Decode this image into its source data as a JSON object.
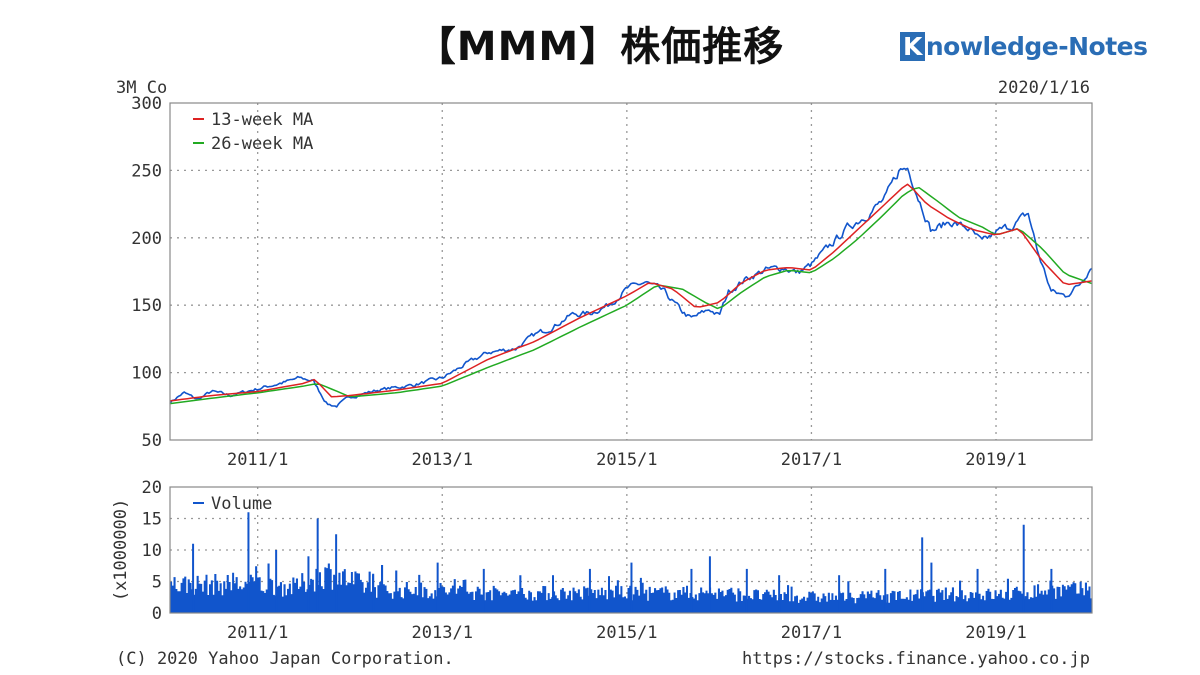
{
  "header": {
    "title": "【MMM】株価推移",
    "brand_initial": "K",
    "brand_rest": "nowledge-Notes"
  },
  "chart_data": [
    {
      "type": "line",
      "title": "3M Co",
      "date": "2020/1/16",
      "ylim": [
        50,
        300
      ],
      "yticks": [
        "300",
        "250",
        "200",
        "150",
        "100",
        "50"
      ],
      "xticks": [
        "2011/1",
        "2013/1",
        "2015/1",
        "2017/1",
        "2019/1"
      ],
      "xrange": [
        2010.05,
        2020.04
      ],
      "grid": true,
      "legend_position": "top-left",
      "series": [
        {
          "name": "13-week MA",
          "color": "#dd2222",
          "x": [
            2010.05,
            2010.5,
            2011.0,
            2011.5,
            2011.62,
            2011.8,
            2012.0,
            2012.5,
            2013.0,
            2013.5,
            2014.0,
            2014.5,
            2015.0,
            2015.25,
            2015.5,
            2015.75,
            2016.0,
            2016.25,
            2016.5,
            2016.75,
            2017.0,
            2017.25,
            2017.5,
            2017.75,
            2018.0,
            2018.05,
            2018.25,
            2018.5,
            2018.75,
            2019.0,
            2019.25,
            2019.5,
            2019.75,
            2020.04
          ],
          "values": [
            79,
            83,
            86,
            92,
            95,
            82,
            83,
            87,
            92,
            110,
            123,
            141,
            157,
            167,
            162,
            148,
            152,
            167,
            176,
            178,
            176,
            190,
            206,
            222,
            238,
            240,
            225,
            214,
            206,
            202,
            207,
            183,
            165,
            168
          ]
        },
        {
          "name": "26-week MA",
          "color": "#22aa22",
          "x": [
            2010.05,
            2010.5,
            2011.0,
            2011.5,
            2011.65,
            2011.9,
            2012.0,
            2012.5,
            2013.0,
            2013.5,
            2014.0,
            2014.5,
            2015.0,
            2015.33,
            2015.6,
            2015.85,
            2016.0,
            2016.25,
            2016.5,
            2016.75,
            2017.0,
            2017.25,
            2017.5,
            2017.75,
            2018.0,
            2018.15,
            2018.35,
            2018.6,
            2018.85,
            2019.0,
            2019.25,
            2019.5,
            2019.75,
            2020.04
          ],
          "values": [
            77,
            81,
            85,
            90,
            92,
            85,
            82,
            85,
            90,
            104,
            117,
            134,
            150,
            165,
            162,
            152,
            147,
            160,
            171,
            176,
            174,
            185,
            199,
            215,
            232,
            238,
            228,
            215,
            208,
            202,
            207,
            192,
            173,
            166
          ]
        },
        {
          "name": "",
          "color": "#1155cc",
          "x": [
            2010.05,
            2010.2,
            2010.35,
            2010.5,
            2010.7,
            2011.0,
            2011.3,
            2011.45,
            2011.6,
            2011.75,
            2011.85,
            2012.0,
            2012.3,
            2012.5,
            2012.7,
            2013.0,
            2013.3,
            2013.5,
            2013.8,
            2014.0,
            2014.2,
            2014.4,
            2014.6,
            2014.8,
            2015.0,
            2015.2,
            2015.4,
            2015.6,
            2015.7,
            2015.9,
            2016.0,
            2016.1,
            2016.3,
            2016.5,
            2016.7,
            2016.85,
            2017.0,
            2017.2,
            2017.4,
            2017.6,
            2017.8,
            2017.95,
            2018.05,
            2018.15,
            2018.3,
            2018.5,
            2018.7,
            2018.85,
            2019.0,
            2019.2,
            2019.35,
            2019.45,
            2019.6,
            2019.75,
            2019.9,
            2020.04
          ],
          "values": [
            78,
            85,
            80,
            86,
            83,
            88,
            93,
            96,
            94,
            77,
            75,
            82,
            87,
            89,
            91,
            96,
            108,
            115,
            118,
            128,
            134,
            143,
            144,
            150,
            162,
            167,
            160,
            145,
            140,
            147,
            142,
            160,
            170,
            176,
            178,
            174,
            180,
            194,
            208,
            217,
            229,
            250,
            252,
            232,
            205,
            212,
            207,
            196,
            204,
            210,
            218,
            190,
            160,
            157,
            165,
            180
          ]
        }
      ]
    },
    {
      "type": "bar",
      "ylabel": "(x1000000)",
      "ylim": [
        0,
        20
      ],
      "yticks": [
        "20",
        "15",
        "10",
        "5",
        "0"
      ],
      "xticks": [
        "2011/1",
        "2013/1",
        "2015/1",
        "2017/1",
        "2019/1"
      ],
      "xrange": [
        2010.05,
        2020.04
      ],
      "grid": true,
      "legend_position": "top-left",
      "series": [
        {
          "name": "Volume",
          "color": "#1155cc",
          "x": [
            2010.05,
            2010.5,
            2011.0,
            2011.4,
            2011.6,
            2011.75,
            2011.95,
            2012.2,
            2012.5,
            2013.0,
            2013.5,
            2014.0,
            2014.5,
            2015.0,
            2015.5,
            2016.0,
            2016.5,
            2017.0,
            2017.5,
            2018.0,
            2018.5,
            2019.0,
            2019.3,
            2019.5,
            2019.75,
            2020.04
          ],
          "values": [
            5,
            5,
            5,
            4.5,
            6,
            7,
            6,
            4.5,
            4,
            4,
            3.5,
            3.5,
            3.5,
            3.5,
            3.5,
            3.5,
            3,
            2.8,
            2.8,
            3,
            3.3,
            3.2,
            3.5,
            4,
            4,
            4
          ],
          "spikes": [
            {
              "x": 2010.3,
              "value": 11
            },
            {
              "x": 2010.9,
              "value": 16
            },
            {
              "x": 2011.2,
              "value": 10
            },
            {
              "x": 2011.55,
              "value": 9
            },
            {
              "x": 2011.65,
              "value": 15
            },
            {
              "x": 2011.85,
              "value": 12.5
            },
            {
              "x": 2012.25,
              "value": 6
            },
            {
              "x": 2012.95,
              "value": 8
            },
            {
              "x": 2013.45,
              "value": 7
            },
            {
              "x": 2014.2,
              "value": 6
            },
            {
              "x": 2014.6,
              "value": 7
            },
            {
              "x": 2015.05,
              "value": 8
            },
            {
              "x": 2015.7,
              "value": 7
            },
            {
              "x": 2015.9,
              "value": 9
            },
            {
              "x": 2016.3,
              "value": 7
            },
            {
              "x": 2016.65,
              "value": 6
            },
            {
              "x": 2017.3,
              "value": 6
            },
            {
              "x": 2017.8,
              "value": 7
            },
            {
              "x": 2018.2,
              "value": 12
            },
            {
              "x": 2018.3,
              "value": 8
            },
            {
              "x": 2018.8,
              "value": 7
            },
            {
              "x": 2019.3,
              "value": 14
            },
            {
              "x": 2019.6,
              "value": 7
            }
          ]
        }
      ]
    }
  ],
  "footer": {
    "copyright": "(C) 2020 Yahoo Japan Corporation.",
    "url": "https://stocks.finance.yahoo.co.jp"
  }
}
